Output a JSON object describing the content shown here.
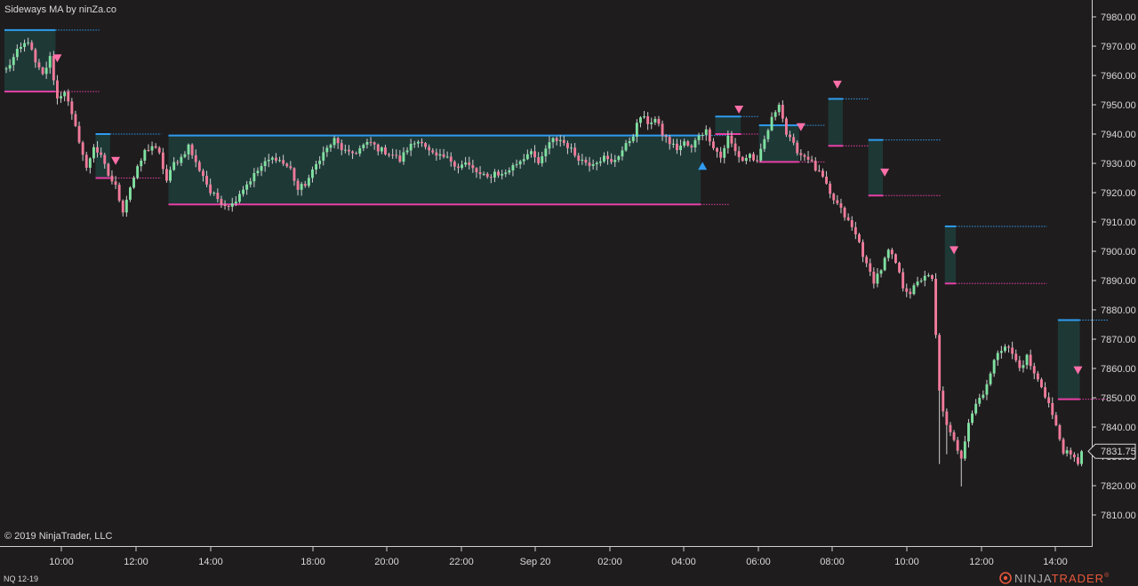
{
  "indicator_label": "Sideways MA by ninZa.co",
  "copyright": "© 2019 NinjaTrader, LLC",
  "instrument": "NQ 12-19",
  "brand": {
    "part1": "NINJA",
    "part2": "TRADER",
    "mark": "®"
  },
  "colors": {
    "background": "#1e1c1d",
    "axis_line": "#d0d0d0",
    "candle_up": "#7fe0a0",
    "candle_down": "#f07a9a",
    "wick": "#cfcfcf",
    "box_fill": "#1f3a38",
    "box_fill_yellow": "#6b5a2a",
    "resistance": "#2f9cf0",
    "support": "#e83fa6",
    "arrow_down": "#ff6fa8",
    "arrow_up": "#2f9cf0",
    "brand_orange": "#e8573a"
  },
  "chart_data": {
    "type": "candlestick",
    "title": "Sideways MA by ninZa.co",
    "instrument": "NQ 12-19",
    "x_ticks": [
      "10:00",
      "12:00",
      "14:00",
      "18:00",
      "20:00",
      "22:00",
      "Sep 20",
      "02:00",
      "04:00",
      "06:00",
      "08:00",
      "10:00",
      "12:00",
      "14:00"
    ],
    "y_ticks": [
      7980,
      7970,
      7960,
      7950,
      7940,
      7930,
      7920,
      7910,
      7900,
      7890,
      7880,
      7870,
      7860,
      7850,
      7840,
      7830,
      7820,
      7810
    ],
    "y_tick_labels": [
      "7980.00",
      "7970.00",
      "7960.00",
      "7950.00",
      "7940.00",
      "7930.00",
      "7920.00",
      "7910.00",
      "7900.00",
      "7890.00",
      "7880.00",
      "7870.00",
      "7860.00",
      "7850.00",
      "7840.00",
      "7830.00",
      "7820.00",
      "7810.00"
    ],
    "ylim": [
      7806,
      7984
    ],
    "last_price": 7831.75,
    "last_price_label": "7831.75",
    "path": [
      [
        0,
        7962
      ],
      [
        3,
        7968
      ],
      [
        6,
        7972
      ],
      [
        8,
        7964
      ],
      [
        10,
        7960
      ],
      [
        12,
        7966
      ],
      [
        14,
        7952
      ],
      [
        16,
        7955
      ],
      [
        18,
        7946
      ],
      [
        20,
        7938
      ],
      [
        22,
        7928
      ],
      [
        24,
        7936
      ],
      [
        26,
        7932
      ],
      [
        28,
        7926
      ],
      [
        30,
        7922
      ],
      [
        32,
        7914
      ],
      [
        34,
        7922
      ],
      [
        36,
        7928
      ],
      [
        38,
        7934
      ],
      [
        40,
        7936
      ],
      [
        42,
        7933
      ],
      [
        44,
        7924
      ],
      [
        46,
        7930
      ],
      [
        48,
        7932
      ],
      [
        50,
        7936
      ],
      [
        52,
        7930
      ],
      [
        54,
        7926
      ],
      [
        56,
        7920
      ],
      [
        58,
        7918
      ],
      [
        60,
        7916
      ],
      [
        62,
        7916
      ],
      [
        64,
        7920
      ],
      [
        66,
        7923
      ],
      [
        68,
        7926
      ],
      [
        70,
        7929
      ],
      [
        72,
        7931
      ],
      [
        74,
        7932
      ],
      [
        76,
        7930
      ],
      [
        78,
        7928
      ],
      [
        80,
        7921
      ],
      [
        82,
        7923
      ],
      [
        84,
        7927
      ],
      [
        86,
        7932
      ],
      [
        88,
        7935
      ],
      [
        90,
        7938
      ],
      [
        92,
        7935
      ],
      [
        94,
        7933
      ],
      [
        96,
        7934
      ],
      [
        98,
        7936
      ],
      [
        100,
        7937
      ],
      [
        102,
        7935
      ],
      [
        104,
        7934
      ],
      [
        106,
        7933
      ],
      [
        108,
        7931
      ],
      [
        110,
        7935
      ],
      [
        112,
        7937
      ],
      [
        114,
        7938
      ],
      [
        116,
        7934
      ],
      [
        118,
        7932
      ],
      [
        120,
        7932
      ],
      [
        122,
        7931
      ],
      [
        124,
        7929
      ],
      [
        126,
        7930
      ],
      [
        128,
        7928
      ],
      [
        130,
        7926
      ],
      [
        132,
        7925
      ],
      [
        134,
        7927
      ],
      [
        136,
        7926
      ],
      [
        138,
        7928
      ],
      [
        140,
        7930
      ],
      [
        142,
        7932
      ],
      [
        144,
        7935
      ],
      [
        146,
        7929
      ],
      [
        148,
        7935
      ],
      [
        150,
        7938
      ],
      [
        152,
        7938
      ],
      [
        154,
        7936
      ],
      [
        156,
        7933
      ],
      [
        158,
        7931
      ],
      [
        160,
        7930
      ],
      [
        162,
        7931
      ],
      [
        164,
        7932
      ],
      [
        166,
        7930
      ],
      [
        168,
        7933
      ],
      [
        170,
        7936
      ],
      [
        172,
        7940
      ],
      [
        174,
        7946
      ],
      [
        176,
        7944
      ],
      [
        178,
        7945
      ],
      [
        180,
        7940
      ],
      [
        182,
        7937
      ],
      [
        184,
        7935
      ],
      [
        186,
        7937
      ],
      [
        188,
        7935
      ],
      [
        190,
        7940
      ],
      [
        192,
        7941
      ],
      [
        194,
        7936
      ],
      [
        196,
        7932
      ],
      [
        198,
        7939
      ],
      [
        200,
        7934
      ],
      [
        202,
        7931
      ],
      [
        204,
        7933
      ],
      [
        206,
        7930
      ],
      [
        208,
        7938
      ],
      [
        210,
        7945
      ],
      [
        212,
        7951
      ],
      [
        214,
        7940
      ],
      [
        216,
        7936
      ],
      [
        218,
        7933
      ],
      [
        220,
        7932
      ],
      [
        222,
        7928
      ],
      [
        224,
        7925
      ],
      [
        226,
        7919
      ],
      [
        228,
        7916
      ],
      [
        230,
        7912
      ],
      [
        232,
        7908
      ],
      [
        234,
        7903
      ],
      [
        236,
        7895
      ],
      [
        238,
        7890
      ],
      [
        240,
        7894
      ],
      [
        242,
        7900
      ],
      [
        244,
        7896
      ],
      [
        246,
        7888
      ],
      [
        248,
        7886
      ],
      [
        250,
        7889
      ],
      [
        252,
        7892
      ],
      [
        254,
        7890
      ],
      [
        256,
        7852
      ],
      [
        258,
        7840
      ],
      [
        260,
        7835
      ],
      [
        262,
        7830
      ],
      [
        264,
        7842
      ],
      [
        266,
        7848
      ],
      [
        268,
        7852
      ],
      [
        270,
        7858
      ],
      [
        272,
        7866
      ],
      [
        274,
        7868
      ],
      [
        276,
        7865
      ],
      [
        278,
        7860
      ],
      [
        280,
        7864
      ],
      [
        282,
        7858
      ],
      [
        284,
        7854
      ],
      [
        286,
        7848
      ],
      [
        288,
        7840
      ],
      [
        290,
        7832
      ],
      [
        292,
        7830
      ],
      [
        294,
        7828
      ],
      [
        295,
        7831.75
      ]
    ],
    "sideways_zones": [
      {
        "x1": 0,
        "x2": 13,
        "top": 7975.5,
        "bottom": 7954.5,
        "ext": 26
      },
      {
        "x1": 25,
        "x2": 28,
        "top": 7940,
        "bottom": 7925,
        "ext": 43
      },
      {
        "x1": 45,
        "x2": 190,
        "top": 7939.5,
        "bottom": 7916,
        "ext": 199
      },
      {
        "x1": 195,
        "x2": 201,
        "top": 7946,
        "bottom": 7940,
        "ext": 207
      },
      {
        "x1": 207,
        "x2": 217,
        "top": 7943,
        "bottom": 7930.5,
        "ext": 225
      },
      {
        "x1": 226,
        "x2": 229,
        "top": 7952,
        "bottom": 7936,
        "ext": 237
      },
      {
        "x1": 237,
        "x2": 240,
        "top": 7938,
        "bottom": 7919,
        "ext": 257
      },
      {
        "x1": 258,
        "x2": 260,
        "top": 7908.5,
        "bottom": 7889,
        "ext": 286
      },
      {
        "x1": 289,
        "x2": 294,
        "top": 7876.5,
        "bottom": 7849.5,
        "ext": 303
      }
    ],
    "signals": [
      {
        "type": "down",
        "x": 14,
        "y": 7966
      },
      {
        "type": "down",
        "x": 30,
        "y": 7931
      },
      {
        "type": "up",
        "x": 191,
        "y": 7929
      },
      {
        "type": "down",
        "x": 201,
        "y": 7948.5
      },
      {
        "type": "down",
        "x": 218,
        "y": 7942.5
      },
      {
        "type": "down",
        "x": 228,
        "y": 7957
      },
      {
        "type": "down",
        "x": 241,
        "y": 7927
      },
      {
        "type": "down",
        "x": 260,
        "y": 7900.5
      },
      {
        "type": "down",
        "x": 294,
        "y": 7859.5
      }
    ]
  }
}
